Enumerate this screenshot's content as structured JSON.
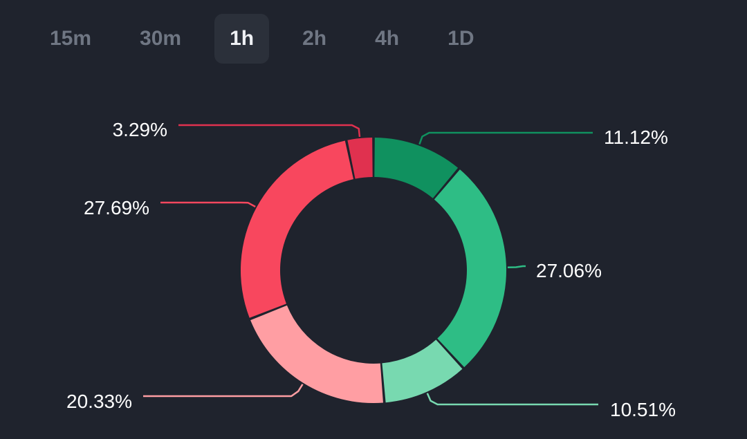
{
  "tabs": [
    {
      "label": "15m",
      "active": false
    },
    {
      "label": "30m",
      "active": false
    },
    {
      "label": "1h",
      "active": true
    },
    {
      "label": "2h",
      "active": false
    },
    {
      "label": "4h",
      "active": false
    },
    {
      "label": "1D",
      "active": false
    }
  ],
  "chart_data": {
    "type": "pie",
    "donut": true,
    "start": "top",
    "direction": "clockwise",
    "slices": [
      {
        "value": 11.12,
        "label": "11.12%",
        "color": "#10915f"
      },
      {
        "value": 27.06,
        "label": "27.06%",
        "color": "#2ebd85"
      },
      {
        "value": 10.51,
        "label": "10.51%",
        "color": "#78d9b0"
      },
      {
        "value": 20.33,
        "label": "20.33%",
        "color": "#ff9ea3"
      },
      {
        "value": 27.69,
        "label": "27.69%",
        "color": "#f8475e"
      },
      {
        "value": 3.29,
        "label": "3.29%",
        "color": "#e0314f"
      }
    ]
  }
}
